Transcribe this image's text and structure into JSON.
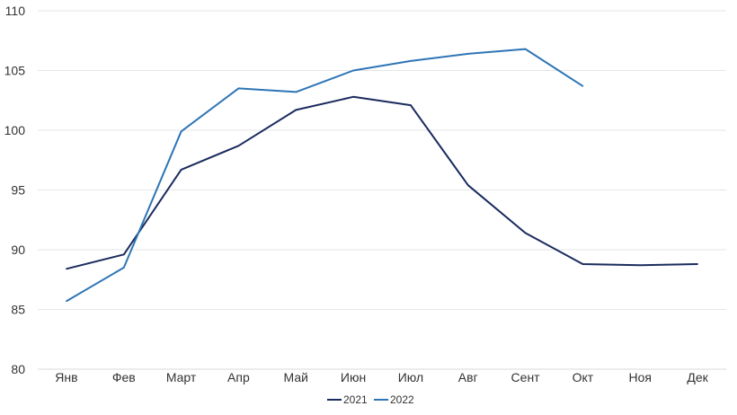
{
  "chart_data": {
    "type": "line",
    "title": "",
    "xlabel": "",
    "ylabel": "",
    "categories": [
      "Янв",
      "Фев",
      "Март",
      "Апр",
      "Май",
      "Июн",
      "Июл",
      "Авг",
      "Сент",
      "Окт",
      "Ноя",
      "Дек"
    ],
    "ylim": [
      80,
      110
    ],
    "yticks": [
      80,
      85,
      90,
      95,
      100,
      105,
      110
    ],
    "grid": true,
    "legend_position": "bottom",
    "series": [
      {
        "name": "2021",
        "color": "#1a2b5e",
        "values": [
          88.4,
          89.6,
          96.7,
          98.7,
          101.7,
          102.8,
          102.1,
          95.4,
          91.4,
          88.8,
          88.7,
          88.8
        ]
      },
      {
        "name": "2022",
        "color": "#2e75b6",
        "values": [
          85.7,
          88.5,
          99.9,
          103.5,
          103.2,
          105.0,
          105.8,
          106.4,
          106.8,
          103.7,
          null,
          null
        ]
      }
    ]
  }
}
